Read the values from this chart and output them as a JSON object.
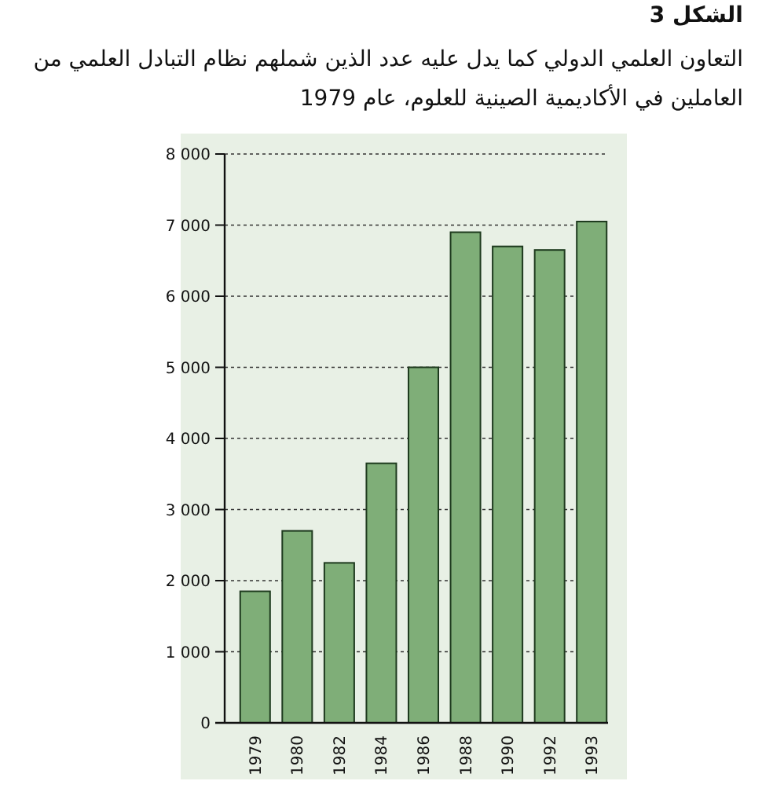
{
  "chart_data": {
    "type": "bar",
    "title": "الشكل 3",
    "subtitle": "التعاون العلمي الدولي كما يدل عليه عدد الذين شملهم نظام التبادل العلمي من العاملين في الأكاديمية الصينية للعلوم، عام 1979",
    "categories": [
      "1979",
      "1980",
      "1982",
      "1984",
      "1986",
      "1988",
      "1990",
      "1992",
      "1993"
    ],
    "values": [
      1850,
      2700,
      2250,
      3650,
      5000,
      6900,
      6700,
      6650,
      7050
    ],
    "color": "#7fae78",
    "ylim": [
      0,
      8000
    ],
    "yticks": [
      0,
      {
        "value": 1000,
        "label": "1 000"
      },
      {
        "value": 2000,
        "label": "2 000"
      },
      {
        "value": 3000,
        "label": "3 000"
      },
      {
        "value": 4000,
        "label": "4 000"
      },
      {
        "value": 5000,
        "label": "5 000"
      },
      {
        "value": 6000,
        "label": "6 000"
      },
      {
        "value": 7000,
        "label": "7 000"
      },
      {
        "value": 8000,
        "label": "8 000"
      }
    ],
    "grid": "y"
  }
}
